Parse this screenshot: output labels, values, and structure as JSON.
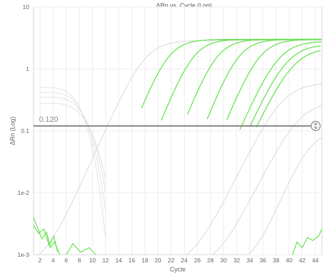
{
  "chart_data": {
    "type": "line",
    "title": "ΔRn vs. Cycle (Log)",
    "xlabel": "Cycle",
    "ylabel": "ΔRn (Log)",
    "x_range": [
      1,
      45
    ],
    "y_range": [
      0.001,
      10
    ],
    "y_scale": "log",
    "x_ticks": [
      2,
      4,
      6,
      8,
      10,
      12,
      14,
      16,
      18,
      20,
      22,
      24,
      26,
      28,
      30,
      32,
      34,
      36,
      38,
      40,
      42,
      44
    ],
    "y_ticks": [
      {
        "value": 10,
        "label": "10"
      },
      {
        "value": 1,
        "label": "1"
      },
      {
        "value": 0.1,
        "label": "0.1"
      },
      {
        "value": 0.01,
        "label": "1e-2"
      },
      {
        "value": 0.001,
        "label": "1e-3"
      }
    ],
    "grid": true,
    "threshold": {
      "value": 0.12,
      "label": "0.120"
    },
    "highlight_color": "#66e34f",
    "muted_color": "#d8d8d8",
    "threshold_color": "#8c8c8c",
    "highlighted_series": [
      {
        "midpoint": 21.5,
        "slope": 0.62,
        "plateau": 3.0,
        "start": 17.5
      },
      {
        "midpoint": 25.3,
        "slope": 0.62,
        "plateau": 3.0,
        "start": 20.5
      },
      {
        "midpoint": 28.9,
        "slope": 0.62,
        "plateau": 3.0,
        "start": 24.5
      },
      {
        "midpoint": 32.2,
        "slope": 0.62,
        "plateau": 3.0,
        "start": 27.5
      },
      {
        "midpoint": 35.4,
        "slope": 0.6,
        "plateau": 3.0,
        "start": 30.5
      },
      {
        "midpoint": 38.3,
        "slope": 0.56,
        "plateau": 2.8,
        "start": 32.5
      },
      {
        "midpoint": 39.6,
        "slope": 0.54,
        "plateau": 2.5,
        "start": 34.0
      },
      {
        "midpoint": 40.6,
        "slope": 0.52,
        "plateau": 2.2,
        "start": 35.0
      }
    ],
    "muted_series": [
      {
        "midpoint": 18.0,
        "slope": 0.55,
        "plateau": 2.9
      },
      {
        "midpoint": 39.0,
        "slope": 0.5,
        "plateau": 0.6
      },
      {
        "midpoint": 41.5,
        "slope": 0.5,
        "plateau": 0.3
      },
      {
        "midpoint": 43.0,
        "slope": 0.6,
        "plateau": 0.1
      }
    ]
  }
}
